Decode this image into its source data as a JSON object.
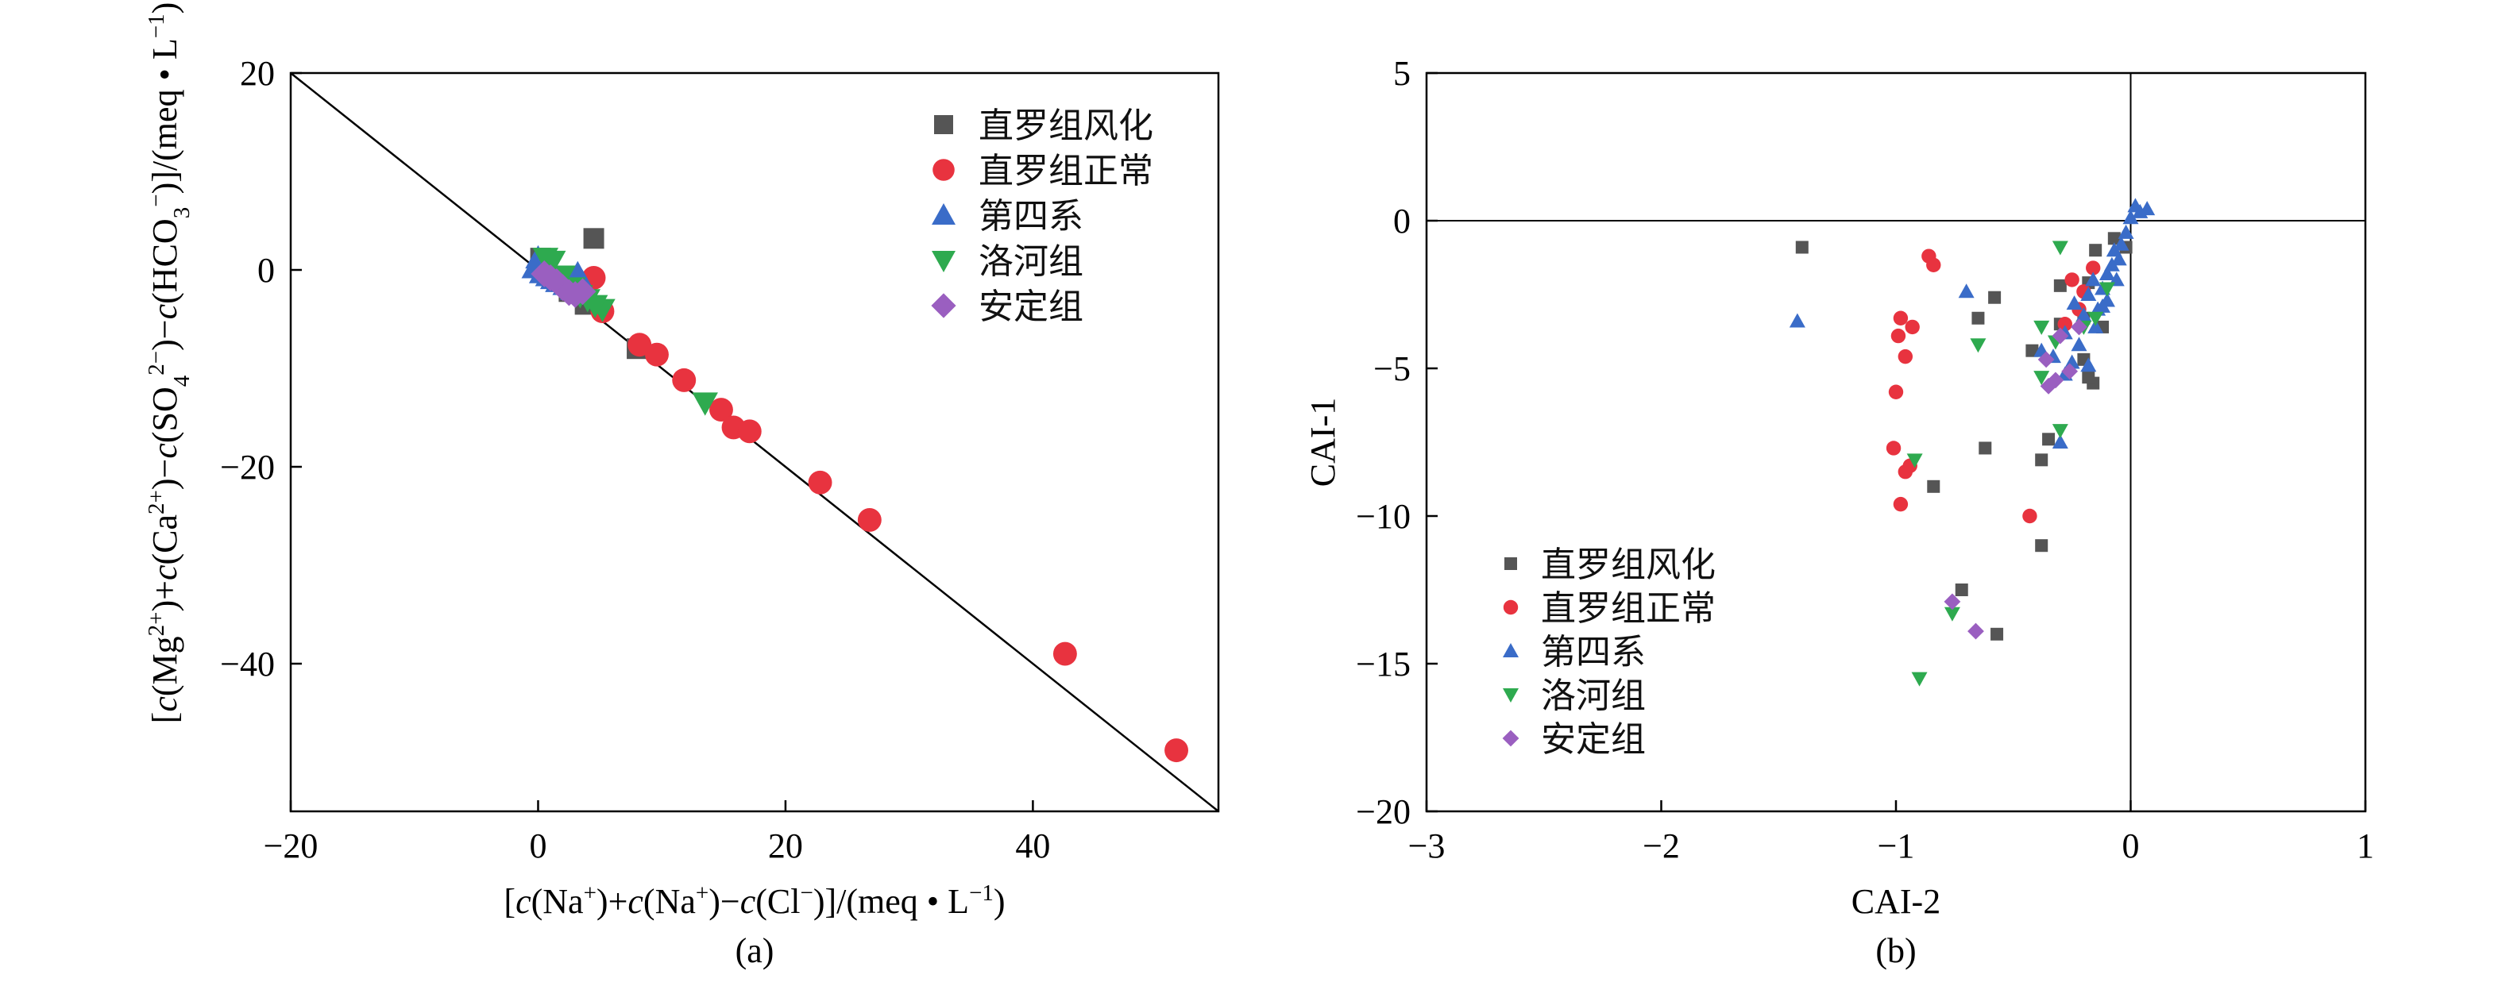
{
  "chart_data": [
    {
      "type": "scatter",
      "panel_label": "(a)",
      "xlabel_parts": [
        {
          "t": "[",
          "it": false
        },
        {
          "t": "c",
          "it": true
        },
        {
          "t": "(Na",
          "it": false
        },
        {
          "t": "+",
          "sup": true
        },
        {
          "t": ")+",
          "it": false
        },
        {
          "t": "c",
          "it": true
        },
        {
          "t": "(Na",
          "it": false
        },
        {
          "t": "+",
          "sup": true
        },
        {
          "t": ")−",
          "it": false
        },
        {
          "t": "c",
          "it": true
        },
        {
          "t": "(Cl",
          "it": false
        },
        {
          "t": "−",
          "sup": true
        },
        {
          "t": ")]/(meq • L",
          "it": false
        },
        {
          "t": "−1",
          "sup": true
        },
        {
          "t": ")",
          "it": false
        }
      ],
      "ylabel_parts": [
        {
          "t": "[",
          "it": false
        },
        {
          "t": "c",
          "it": true
        },
        {
          "t": "(Mg",
          "it": false
        },
        {
          "t": "2+",
          "sup": true
        },
        {
          "t": ")+",
          "it": false
        },
        {
          "t": "c",
          "it": true
        },
        {
          "t": "(Ca",
          "it": false
        },
        {
          "t": "2+",
          "sup": true
        },
        {
          "t": ")−",
          "it": false
        },
        {
          "t": "c",
          "it": true
        },
        {
          "t": "(SO",
          "it": false
        },
        {
          "t": "4",
          "sub": true
        },
        {
          "t": "2−",
          "sup": true
        },
        {
          "t": ")−",
          "it": false
        },
        {
          "t": "c",
          "it": true
        },
        {
          "t": "(HCO",
          "it": false
        },
        {
          "t": "3",
          "sub": true
        },
        {
          "t": "−",
          "sup": true
        },
        {
          "t": ")]/(meq • L",
          "it": false
        },
        {
          "t": "−1",
          "sup": true
        },
        {
          "t": ")",
          "it": false
        }
      ],
      "xlim": [
        -20,
        55
      ],
      "ylim": [
        -55,
        20
      ],
      "xticks": [
        -20,
        0,
        20,
        40
      ],
      "yticks": [
        20,
        0,
        -20,
        -40
      ],
      "x_tick_labels": [
        "−20",
        "0",
        "20",
        "40"
      ],
      "y_tick_labels": [
        "20",
        "0",
        "−20",
        "−40"
      ],
      "reference_line": {
        "slope": -1,
        "intercept": 0
      },
      "legend": {
        "position": "top-right"
      },
      "series": [
        {
          "name": "直罗组风化",
          "color": "#555555",
          "marker": "square",
          "points": [
            [
              4.5,
              3.2
            ],
            [
              0.2,
              1.2
            ],
            [
              2.5,
              -2.2
            ],
            [
              3.8,
              -3.5
            ],
            [
              8,
              -8
            ]
          ]
        },
        {
          "name": "直罗组正常",
          "color": "#e8333f",
          "marker": "circle",
          "points": [
            [
              4.5,
              -0.8
            ],
            [
              5.2,
              -4.2
            ],
            [
              8.2,
              -7.6
            ],
            [
              9.6,
              -8.6
            ],
            [
              11.8,
              -11.2
            ],
            [
              14.8,
              -14.2
            ],
            [
              15.8,
              -16.0
            ],
            [
              17.1,
              -16.4
            ],
            [
              22.8,
              -21.6
            ],
            [
              26.8,
              -25.4
            ],
            [
              42.6,
              -39.0
            ],
            [
              51.6,
              -48.8
            ]
          ]
        },
        {
          "name": "第四系",
          "color": "#3a6cc8",
          "marker": "triangle-up",
          "points": [
            [
              0,
              1.2
            ],
            [
              0.2,
              0.5
            ],
            [
              -0.3,
              0.2
            ],
            [
              0.3,
              -0.3
            ],
            [
              0.8,
              -0.6
            ],
            [
              1.2,
              -0.9
            ],
            [
              1.6,
              -1.2
            ],
            [
              2.2,
              -1.5
            ],
            [
              2.8,
              -2.0
            ],
            [
              3.2,
              -0.4
            ],
            [
              3.6,
              -1.3
            ],
            [
              1.0,
              -0.2
            ],
            [
              2.6,
              -1.0
            ]
          ]
        },
        {
          "name": "洛河组",
          "color": "#2eaa4f",
          "marker": "triangle-down",
          "points": [
            [
              0.6,
              1.2
            ],
            [
              1.2,
              0.9
            ],
            [
              2.0,
              -0.6
            ],
            [
              2.8,
              -1.8
            ],
            [
              3.4,
              -2.6
            ],
            [
              4.0,
              -3.0
            ],
            [
              5.2,
              -4.0
            ],
            [
              13.5,
              -13.5
            ],
            [
              1.6,
              -1.2
            ],
            [
              4.6,
              -3.6
            ]
          ]
        },
        {
          "name": "安定组",
          "color": "#9a5fc0",
          "marker": "diamond",
          "points": [
            [
              0.5,
              -0.4
            ],
            [
              1.0,
              -0.8
            ],
            [
              1.5,
              -1.2
            ],
            [
              2.0,
              -1.8
            ],
            [
              2.5,
              -2.3
            ],
            [
              3.0,
              -2.5
            ],
            [
              3.6,
              -2.2
            ]
          ]
        }
      ]
    },
    {
      "type": "scatter",
      "panel_label": "(b)",
      "xlabel": "CAI-2",
      "ylabel": "CAI-1",
      "xlim": [
        -3,
        1
      ],
      "ylim": [
        -20,
        5
      ],
      "xticks": [
        -3,
        -2,
        -1,
        0,
        1
      ],
      "yticks": [
        5,
        0,
        -5,
        -10,
        -15,
        -20
      ],
      "x_tick_labels": [
        "−3",
        "−2",
        "−1",
        "0",
        "1"
      ],
      "y_tick_labels": [
        "5",
        "0",
        "−5",
        "−10",
        "−15",
        "−20"
      ],
      "reference_lines": {
        "x": 0,
        "y": 0
      },
      "legend": {
        "position": "bottom-left"
      },
      "series": [
        {
          "name": "直罗组风化",
          "color": "#555555",
          "marker": "square",
          "points": [
            [
              -1.4,
              -0.9
            ],
            [
              -0.58,
              -2.6
            ],
            [
              -0.65,
              -3.3
            ],
            [
              -0.84,
              -9.0
            ],
            [
              -0.62,
              -7.7
            ],
            [
              -0.38,
              -8.1
            ],
            [
              -0.35,
              -7.4
            ],
            [
              -0.38,
              -11.0
            ],
            [
              -0.57,
              -14.0
            ],
            [
              -0.72,
              -12.5
            ],
            [
              -0.42,
              -4.4
            ],
            [
              -0.3,
              -3.5
            ],
            [
              -0.3,
              -2.2
            ],
            [
              -0.16,
              -5.5
            ],
            [
              -0.18,
              -5.3
            ],
            [
              -0.2,
              -3.3
            ],
            [
              -0.18,
              -2.1
            ],
            [
              -0.15,
              -1.0
            ],
            [
              -0.12,
              -3.6
            ],
            [
              -0.2,
              -4.7
            ],
            [
              -0.07,
              -0.6
            ],
            [
              -0.02,
              -0.9
            ]
          ]
        },
        {
          "name": "直罗组正常",
          "color": "#e8333f",
          "marker": "circle",
          "points": [
            [
              -0.98,
              -3.3
            ],
            [
              -0.99,
              -3.9
            ],
            [
              -0.93,
              -3.6
            ],
            [
              -0.96,
              -4.6
            ],
            [
              -1.0,
              -5.8
            ],
            [
              -1.01,
              -7.7
            ],
            [
              -0.96,
              -8.5
            ],
            [
              -0.94,
              -8.3
            ],
            [
              -0.98,
              -9.6
            ],
            [
              -0.86,
              -1.2
            ],
            [
              -0.84,
              -1.5
            ],
            [
              -0.43,
              -10.0
            ],
            [
              -0.28,
              -3.5
            ],
            [
              -0.22,
              -3.0
            ],
            [
              -0.25,
              -2.0
            ],
            [
              -0.2,
              -2.4
            ],
            [
              -0.16,
              -1.6
            ]
          ]
        },
        {
          "name": "第四系",
          "color": "#3a6cc8",
          "marker": "triangle-up",
          "points": [
            [
              -1.42,
              -3.4
            ],
            [
              -0.7,
              -2.4
            ],
            [
              -0.38,
              -4.4
            ],
            [
              -0.33,
              -4.6
            ],
            [
              -0.28,
              -5.2
            ],
            [
              -0.3,
              -7.5
            ],
            [
              -0.25,
              -4.8
            ],
            [
              -0.28,
              -3.8
            ],
            [
              -0.24,
              -2.8
            ],
            [
              -0.2,
              -3.2
            ],
            [
              -0.18,
              -2.5
            ],
            [
              -0.16,
              -2.0
            ],
            [
              -0.14,
              -3.0
            ],
            [
              -0.12,
              -2.3
            ],
            [
              -0.1,
              -1.8
            ],
            [
              -0.1,
              -2.7
            ],
            [
              -0.08,
              -1.5
            ],
            [
              -0.07,
              -1.0
            ],
            [
              -0.06,
              -2.0
            ],
            [
              -0.05,
              -1.3
            ],
            [
              -0.04,
              -0.8
            ],
            [
              -0.02,
              -0.4
            ],
            [
              0,
              0.1
            ],
            [
              0.02,
              0.5
            ],
            [
              0.04,
              0.3
            ],
            [
              0.07,
              0.4
            ],
            [
              -0.18,
              -4.9
            ],
            [
              -0.22,
              -4.2
            ],
            [
              -0.15,
              -3.6
            ],
            [
              -0.12,
              -2.9
            ]
          ]
        },
        {
          "name": "洛河组",
          "color": "#2eaa4f",
          "marker": "triangle-down",
          "points": [
            [
              -0.3,
              -0.9
            ],
            [
              -0.65,
              -4.2
            ],
            [
              -0.38,
              -3.6
            ],
            [
              -0.38,
              -5.3
            ],
            [
              -0.3,
              -7.1
            ],
            [
              -0.92,
              -8.1
            ],
            [
              -0.9,
              -15.5
            ],
            [
              -0.76,
              -13.3
            ],
            [
              -0.2,
              -3.6
            ],
            [
              -0.15,
              -3.3
            ],
            [
              -0.32,
              -4.1
            ],
            [
              -0.1,
              -2.3
            ]
          ]
        },
        {
          "name": "安定组",
          "color": "#9a5fc0",
          "marker": "diamond",
          "points": [
            [
              -0.76,
              -12.9
            ],
            [
              -0.66,
              -13.9
            ],
            [
              -0.36,
              -4.7
            ],
            [
              -0.32,
              -5.4
            ],
            [
              -0.26,
              -5.1
            ],
            [
              -0.35,
              -5.6
            ],
            [
              -0.3,
              -3.9
            ],
            [
              -0.22,
              -3.6
            ]
          ]
        }
      ]
    }
  ]
}
